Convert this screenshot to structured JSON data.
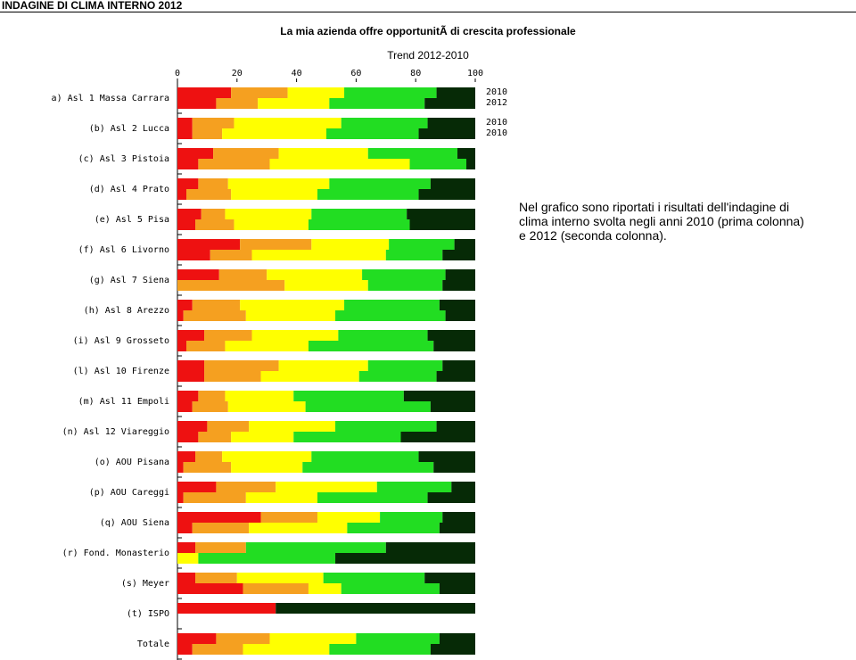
{
  "header": "INDAGINE DI CLIMA INTERNO 2012",
  "chart_data": {
    "type": "stacked-bar-pair",
    "title": "La mia azienda offre opportunitÃ  di crescita professionale",
    "subtitle": "Trend 2012-2010",
    "note": "Nel grafico sono riportati i risultati dell'indagine di clima interno svolta negli anni 2010 (prima colonna) e 2012 (seconda colonna).",
    "xlim": [
      0,
      100
    ],
    "xticks": [
      0,
      20,
      40,
      60,
      80,
      100
    ],
    "categories": [
      "a) Asl 1 Massa Carrara",
      "(b) Asl 2 Lucca",
      "(c) Asl 3 Pistoia",
      "(d) Asl 4 Prato",
      "(e) Asl 5 Pisa",
      "(f) Asl 6 Livorno",
      "(g) Asl 7 Siena",
      "(h) Asl 8 Arezzo",
      "(i) Asl 9 Grosseto",
      "(l) Asl 10 Firenze",
      "(m) Asl 11 Empoli",
      "(n) Asl 12 Viareggio",
      "(o) AOU Pisana",
      "(p) AOU Careggi",
      "(q) AOU Siena",
      "(r) Fond. Monasterio",
      "(s) Meyer",
      "(t) ISPO",
      "Totale"
    ],
    "annotations": [
      [
        "2010",
        "2012"
      ],
      [
        "2010",
        "2010"
      ]
    ],
    "series": [
      {
        "color": "#ee1111",
        "values": [
          [
            18,
            13
          ],
          [
            5,
            5
          ],
          [
            12,
            7
          ],
          [
            7,
            3
          ],
          [
            8,
            6
          ],
          [
            21,
            11
          ],
          [
            14,
            0
          ],
          [
            5,
            2
          ],
          [
            9,
            3
          ],
          [
            9,
            9
          ],
          [
            7,
            5
          ],
          [
            10,
            7
          ],
          [
            6,
            2
          ],
          [
            13,
            2
          ],
          [
            28,
            5
          ],
          [
            6,
            0
          ],
          [
            6,
            22
          ],
          [
            33,
            null
          ],
          [
            13,
            5
          ]
        ]
      },
      {
        "color": "#f5a020",
        "values": [
          [
            19,
            14
          ],
          [
            14,
            10
          ],
          [
            22,
            24
          ],
          [
            10,
            15
          ],
          [
            8,
            13
          ],
          [
            24,
            14
          ],
          [
            16,
            36
          ],
          [
            16,
            21
          ],
          [
            16,
            13
          ],
          [
            25,
            19
          ],
          [
            9,
            12
          ],
          [
            14,
            11
          ],
          [
            9,
            16
          ],
          [
            20,
            21
          ],
          [
            19,
            19
          ],
          [
            17,
            0
          ],
          [
            14,
            22
          ],
          [
            0,
            null
          ],
          [
            18,
            17
          ]
        ]
      },
      {
        "color": "#ffff00",
        "values": [
          [
            19,
            24
          ],
          [
            36,
            35
          ],
          [
            30,
            47
          ],
          [
            34,
            29
          ],
          [
            29,
            25
          ],
          [
            26,
            45
          ],
          [
            32,
            28
          ],
          [
            35,
            30
          ],
          [
            29,
            28
          ],
          [
            30,
            33
          ],
          [
            23,
            26
          ],
          [
            29,
            21
          ],
          [
            30,
            24
          ],
          [
            34,
            24
          ],
          [
            21,
            33
          ],
          [
            0,
            7
          ],
          [
            29,
            11
          ],
          [
            0,
            null
          ],
          [
            29,
            29
          ]
        ]
      },
      {
        "color": "#22dd22",
        "values": [
          [
            31,
            32
          ],
          [
            29,
            31
          ],
          [
            30,
            19
          ],
          [
            34,
            34
          ],
          [
            32,
            34
          ],
          [
            22,
            19
          ],
          [
            28,
            25
          ],
          [
            32,
            37
          ],
          [
            30,
            42
          ],
          [
            25,
            26
          ],
          [
            37,
            42
          ],
          [
            34,
            36
          ],
          [
            36,
            44
          ],
          [
            25,
            37
          ],
          [
            21,
            31
          ],
          [
            47,
            46
          ],
          [
            34,
            33
          ],
          [
            0,
            null
          ],
          [
            28,
            34
          ]
        ]
      },
      {
        "color": "#062a06",
        "values": [
          [
            13,
            17
          ],
          [
            16,
            19
          ],
          [
            6,
            3
          ],
          [
            15,
            19
          ],
          [
            23,
            22
          ],
          [
            7,
            11
          ],
          [
            10,
            11
          ],
          [
            12,
            10
          ],
          [
            16,
            14
          ],
          [
            11,
            13
          ],
          [
            24,
            15
          ],
          [
            13,
            25
          ],
          [
            19,
            14
          ],
          [
            8,
            16
          ],
          [
            11,
            12
          ],
          [
            30,
            47
          ],
          [
            17,
            12
          ],
          [
            67,
            null
          ],
          [
            12,
            15
          ]
        ]
      }
    ]
  }
}
